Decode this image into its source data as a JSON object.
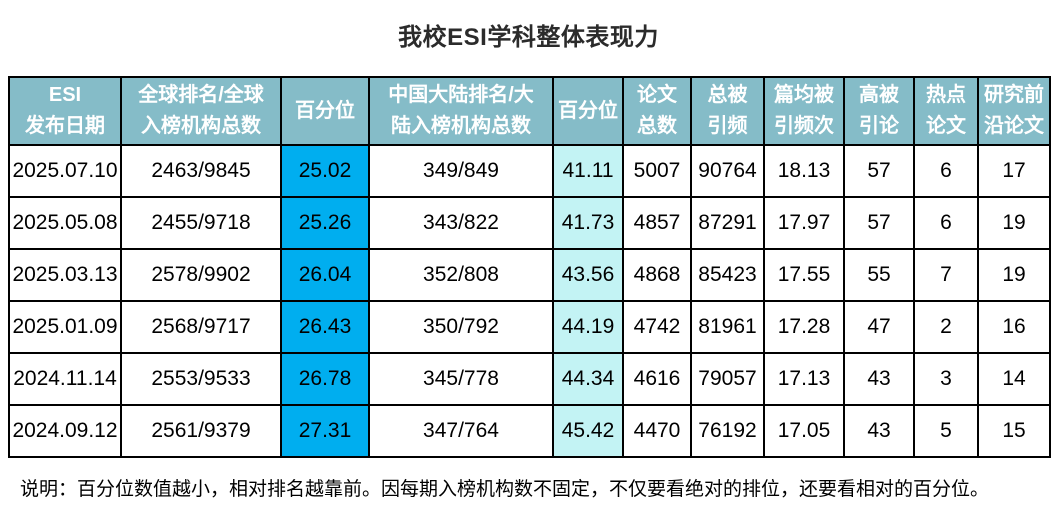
{
  "title": "我校ESI学科整体表现力",
  "colors": {
    "header_bg": "#85BCC8",
    "header_text": "#FFFFFF",
    "global_percentile_bg": "#00AEEF",
    "china_percentile_bg": "#C3F3F4",
    "border": "#000000"
  },
  "table": {
    "headers": [
      "ESI\n发布日期",
      "全球排名/全球\n入榜机构总数",
      "百分位",
      "中国大陆排名/大\n陆入榜机构总数",
      "百分位",
      "论文\n总数",
      "总被\n引频",
      "篇均被\n引频次",
      "高被\n引论",
      "热点\n论文",
      "研究前\n沿论文"
    ],
    "column_keys": [
      "publish-date",
      "global-rank",
      "global-percentile",
      "china-rank",
      "china-percentile",
      "paper-count",
      "total-citations",
      "citations-per-paper",
      "highly-cited-papers",
      "hot-papers",
      "research-front-papers"
    ],
    "rows": [
      [
        "2025.07.10",
        "2463/9845",
        "25.02",
        "349/849",
        "41.11",
        "5007",
        "90764",
        "18.13",
        "57",
        "6",
        "17"
      ],
      [
        "2025.05.08",
        "2455/9718",
        "25.26",
        "343/822",
        "41.73",
        "4857",
        "87291",
        "17.97",
        "57",
        "6",
        "19"
      ],
      [
        "2025.03.13",
        "2578/9902",
        "26.04",
        "352/808",
        "43.56",
        "4868",
        "85423",
        "17.55",
        "55",
        "7",
        "19"
      ],
      [
        "2025.01.09",
        "2568/9717",
        "26.43",
        "350/792",
        "44.19",
        "4742",
        "81961",
        "17.28",
        "47",
        "2",
        "16"
      ],
      [
        "2024.11.14",
        "2553/9533",
        "26.78",
        "345/778",
        "44.34",
        "4616",
        "79057",
        "17.13",
        "43",
        "3",
        "14"
      ],
      [
        "2024.09.12",
        "2561/9379",
        "27.31",
        "347/764",
        "45.42",
        "4470",
        "76192",
        "17.05",
        "43",
        "5",
        "15"
      ]
    ]
  },
  "note": "说明：百分位数值越小，相对排名越靠前。因每期入榜机构数不固定，不仅要看绝对的排位，还要看相对的百分位。"
}
